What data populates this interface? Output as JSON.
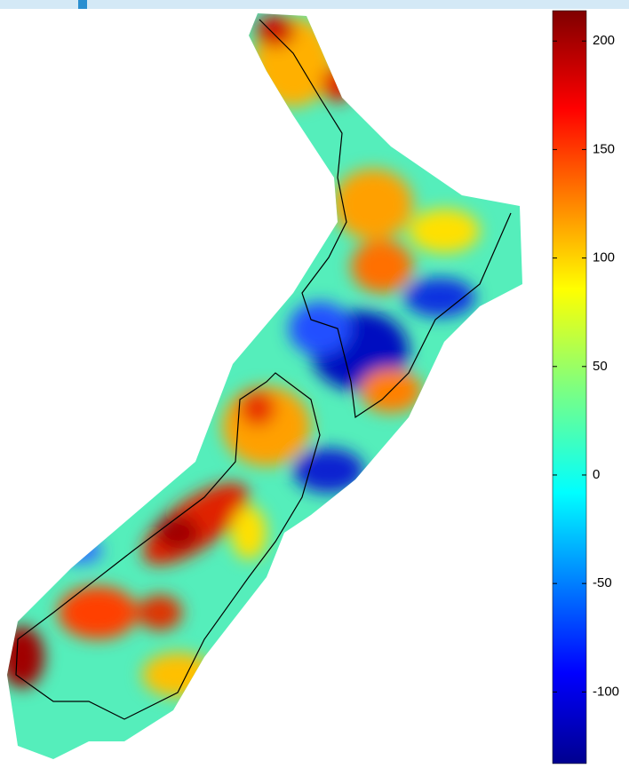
{
  "colorbar": {
    "lim": [
      -133,
      214
    ],
    "ticks": [
      200,
      150,
      100,
      50,
      0,
      -50,
      -100
    ]
  }
}
